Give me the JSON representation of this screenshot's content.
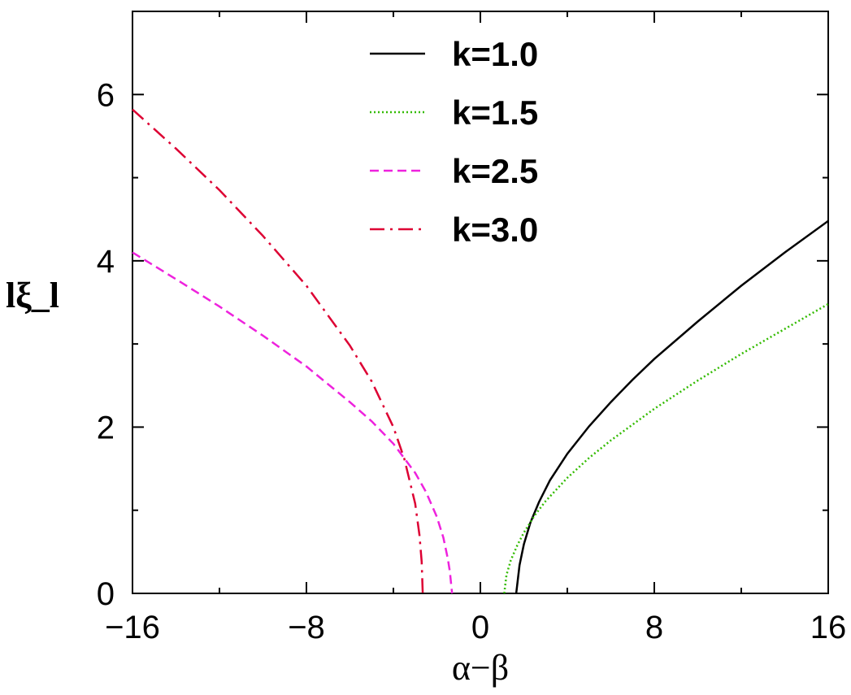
{
  "chart_data": {
    "type": "line",
    "title": "",
    "xlabel": "α−β",
    "ylabel": "lξ_l",
    "xlim": [
      -16,
      16
    ],
    "ylim": [
      0,
      7
    ],
    "xticks": [
      -16,
      -8,
      0,
      8,
      16
    ],
    "xtick_labels": [
      "−16",
      "−8",
      "0",
      "8",
      "16"
    ],
    "yticks": [
      0,
      2,
      4,
      6
    ],
    "ytick_labels": [
      "0",
      "2",
      "4",
      "6"
    ],
    "grid": false,
    "legend": "top-center",
    "series": [
      {
        "name": "k=1.0",
        "color": "#000000",
        "dash": "solid",
        "x": [
          1.65,
          1.8,
          2.0,
          2.3,
          2.7,
          3.2,
          4.0,
          5.0,
          6.0,
          7.0,
          8.0,
          10.0,
          12.0,
          14.0,
          16.0
        ],
        "y": [
          0.0,
          0.34,
          0.59,
          0.85,
          1.1,
          1.36,
          1.68,
          2.01,
          2.3,
          2.57,
          2.82,
          3.27,
          3.7,
          4.1,
          4.48
        ]
      },
      {
        "name": "k=1.5",
        "color": "#33bb00",
        "dash": "dotted",
        "x": [
          1.1,
          1.2,
          1.4,
          1.7,
          2.0,
          2.5,
          3.0,
          4.0,
          5.0,
          6.0,
          8.0,
          10.0,
          12.0,
          14.0,
          16.0
        ],
        "y": [
          0.0,
          0.22,
          0.4,
          0.58,
          0.73,
          0.94,
          1.11,
          1.39,
          1.63,
          1.84,
          2.22,
          2.56,
          2.88,
          3.18,
          3.48
        ]
      },
      {
        "name": "k=2.5",
        "color": "#ee22dd",
        "dash": "dashed",
        "x": [
          -16.0,
          -14.0,
          -12.0,
          -10.0,
          -8.0,
          -6.0,
          -5.0,
          -4.0,
          -3.0,
          -2.5,
          -2.0,
          -1.7,
          -1.5,
          -1.4,
          -1.3
        ],
        "y": [
          4.1,
          3.78,
          3.45,
          3.1,
          2.73,
          2.3,
          2.07,
          1.8,
          1.45,
          1.22,
          0.92,
          0.67,
          0.42,
          0.26,
          0.0
        ]
      },
      {
        "name": "k=3.0",
        "color": "#dd0033",
        "dash": "dashdot",
        "x": [
          -16.0,
          -14.0,
          -12.0,
          -10.0,
          -8.0,
          -6.0,
          -5.0,
          -4.0,
          -3.5,
          -3.0,
          -2.8,
          -2.7,
          -2.65
        ],
        "y": [
          5.82,
          5.35,
          4.85,
          4.3,
          3.7,
          2.98,
          2.55,
          2.0,
          1.62,
          1.08,
          0.7,
          0.38,
          0.0
        ]
      }
    ]
  }
}
